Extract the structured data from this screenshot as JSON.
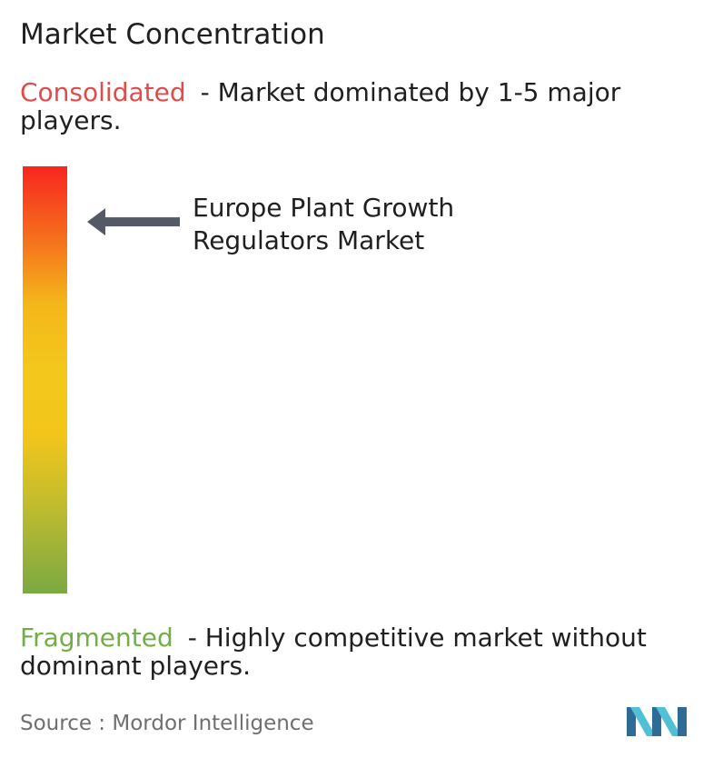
{
  "title": "Market Concentration",
  "consolidated": {
    "term": "Consolidated",
    "description": "- Market dominated by 1-5 major players.",
    "color": "#e04b4b"
  },
  "fragmented": {
    "term": "Fragmented",
    "description": "- Highly competitive market without dominant players.",
    "color": "#71ae46"
  },
  "chart_data": {
    "type": "gauge",
    "scale": {
      "top_label": "Consolidated",
      "bottom_label": "Fragmented",
      "gradient_colors": [
        "#f8251f",
        "#f5701c",
        "#f4b71a",
        "#f3c81b",
        "#c5bd2c",
        "#7ba944"
      ]
    },
    "marker": {
      "label_lines": [
        "Europe Plant Growth",
        "Regulators Market"
      ],
      "position_from_consolidated": 0.13,
      "color": "#545a65"
    }
  },
  "source": {
    "label": "Source :",
    "value": "Mordor Intelligence"
  },
  "logo": {
    "name": "mordor-intelligence-logo-icon",
    "color_dark": "#2e6b96",
    "color_light": "#4fc0d6"
  }
}
